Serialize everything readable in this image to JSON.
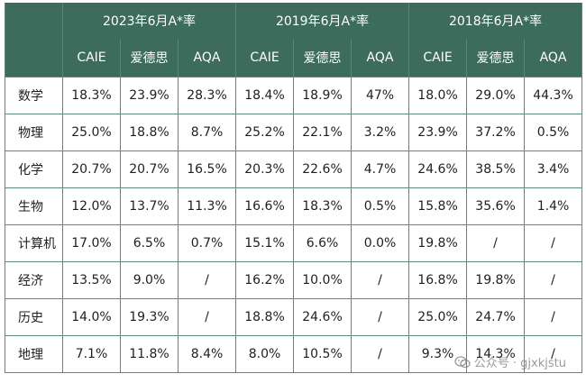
{
  "years": [
    {
      "label": "2023年6月A*率"
    },
    {
      "label": "2019年6月A*率"
    },
    {
      "label": "2018年6月A*率"
    }
  ],
  "boards": [
    "CAIE",
    "爱德思",
    "AQA"
  ],
  "rows": [
    {
      "subject": "数学",
      "values": [
        "18.3%",
        "23.9%",
        "28.3%",
        "18.4%",
        "18.9%",
        "47%",
        "18.0%",
        "29.0%",
        "44.3%"
      ]
    },
    {
      "subject": "物理",
      "values": [
        "25.0%",
        "18.8%",
        "8.7%",
        "25.2%",
        "22.1%",
        "3.2%",
        "23.9%",
        "37.2%",
        "0.5%"
      ]
    },
    {
      "subject": "化学",
      "values": [
        "20.7%",
        "20.7%",
        "16.5%",
        "20.3%",
        "22.6%",
        "4.7%",
        "24.6%",
        "38.5%",
        "3.4%"
      ]
    },
    {
      "subject": "生物",
      "values": [
        "12.0%",
        "13.7%",
        "11.3%",
        "16.6%",
        "18.3%",
        "0.5%",
        "15.8%",
        "35.6%",
        "1.4%"
      ]
    },
    {
      "subject": "计算机",
      "values": [
        "17.0%",
        "6.5%",
        "0.7%",
        "15.1%",
        "6.6%",
        "0.0%",
        "19.8%",
        "/",
        "/"
      ]
    },
    {
      "subject": "经济",
      "values": [
        "13.5%",
        "9.0%",
        "/",
        "16.2%",
        "10.0%",
        "/",
        "16.8%",
        "19.8%",
        "/"
      ]
    },
    {
      "subject": "历史",
      "values": [
        "14.0%",
        "19.3%",
        "/",
        "18.8%",
        "24.6%",
        "/",
        "25.0%",
        "24.7%",
        "/"
      ]
    },
    {
      "subject": "地理",
      "values": [
        "7.1%",
        "11.8%",
        "8.4%",
        "8.0%",
        "10.5%",
        "/",
        "9.3%",
        "14.3%",
        "/"
      ]
    }
  ],
  "watermark": {
    "text": "公众号 · gjxkjstu",
    "icon": "wechat-icon"
  },
  "colors": {
    "header_bg": "#3d6b5c",
    "header_text": "#ffffff",
    "border": "#5d8a7a"
  }
}
